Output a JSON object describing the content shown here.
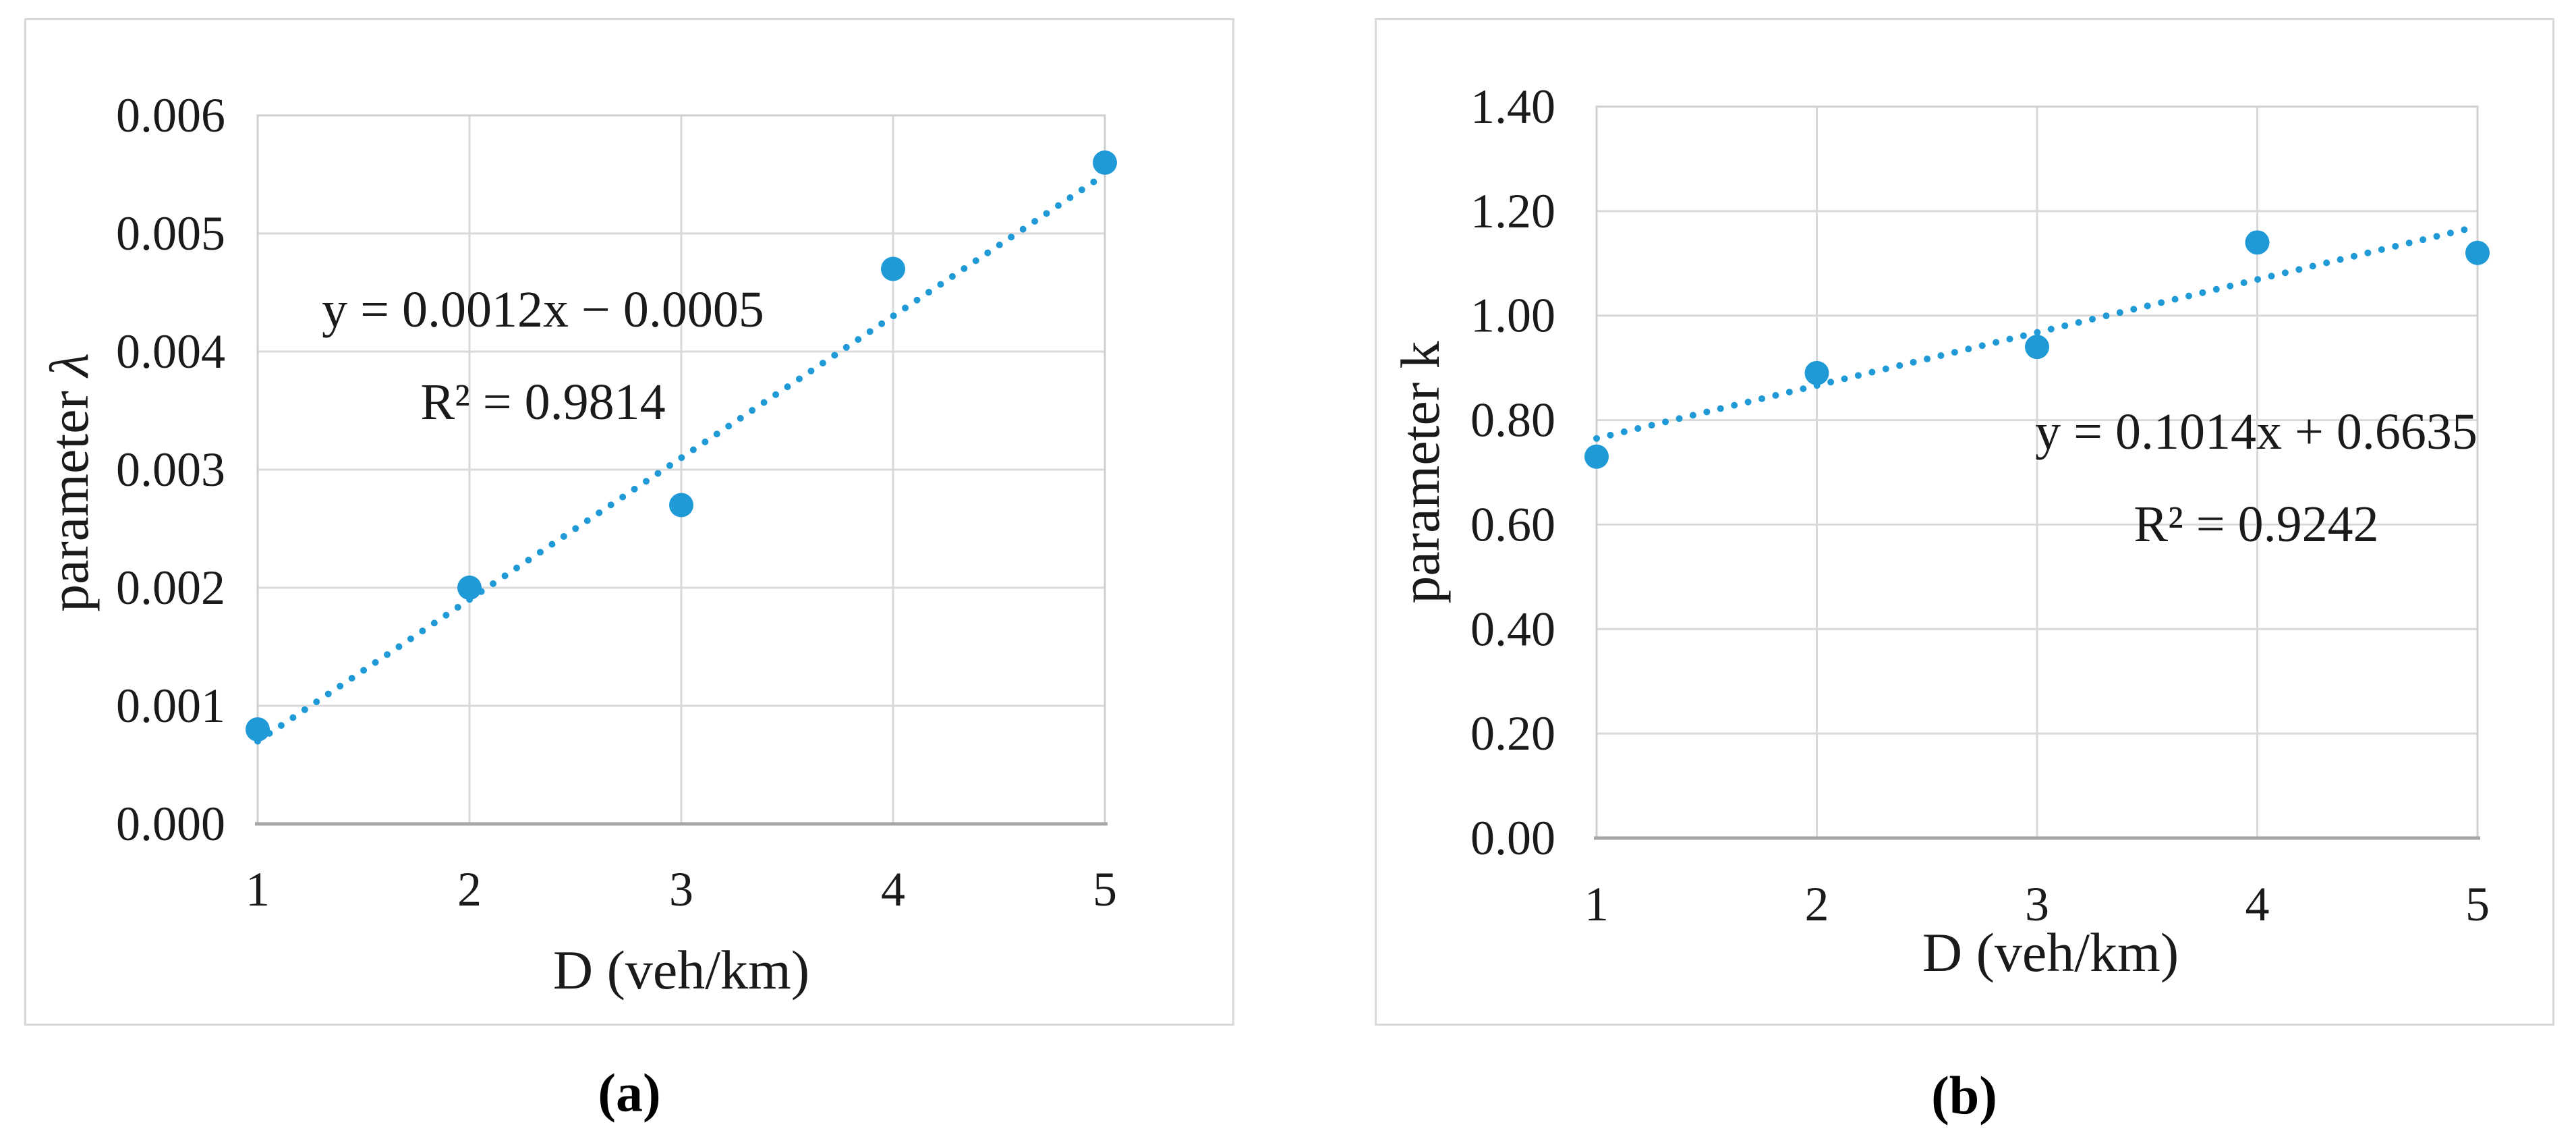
{
  "figure_colors": {
    "marker_blue": "#1f9ad6",
    "gridline_gray": "#d9d9d9",
    "plot_border_gray": "#cfcfcf",
    "axis_gray": "#a6a6a6",
    "panel_border_gray": "#d9d9d9"
  },
  "chart_data": [
    {
      "id": "a",
      "type": "scatter",
      "x": [
        1,
        2,
        3,
        4,
        5
      ],
      "y": [
        0.0008,
        0.002,
        0.0027,
        0.0047,
        0.0056
      ],
      "trendline": {
        "style": "dotted",
        "slope": 0.0012,
        "intercept": -0.0005,
        "equation": "y = 0.0012x − 0.0005",
        "r_squared_label": "R² = 0.9814"
      },
      "xlabel": "D (veh/km)",
      "ylabel_prefix": "parameter ",
      "ylabel_symbol": "λ",
      "caption": "(a)",
      "xlim": [
        1,
        5
      ],
      "ylim": [
        0,
        0.006
      ],
      "xtick_labels": [
        "1",
        "2",
        "3",
        "4",
        "5"
      ],
      "ytick_labels": [
        "0.000",
        "0.001",
        "0.002",
        "0.003",
        "0.004",
        "0.005",
        "0.006"
      ],
      "grid": true,
      "legend": "none"
    },
    {
      "id": "b",
      "type": "scatter",
      "x": [
        1,
        2,
        3,
        4,
        5
      ],
      "y": [
        0.73,
        0.89,
        0.94,
        1.14,
        1.12
      ],
      "trendline": {
        "style": "dotted",
        "slope": 0.1014,
        "intercept": 0.6635,
        "equation": "y = 0.1014x + 0.6635",
        "r_squared_label": "R² = 0.9242"
      },
      "xlabel": "D (veh/km)",
      "ylabel_prefix": "parameter ",
      "ylabel_symbol": "k",
      "caption": "(b)",
      "xlim": [
        1,
        5
      ],
      "ylim": [
        0,
        1.4
      ],
      "xtick_labels": [
        "1",
        "2",
        "3",
        "4",
        "5"
      ],
      "ytick_labels": [
        "0.00",
        "0.20",
        "0.40",
        "0.60",
        "0.80",
        "1.00",
        "1.20",
        "1.40"
      ],
      "grid": true,
      "legend": "none"
    }
  ]
}
